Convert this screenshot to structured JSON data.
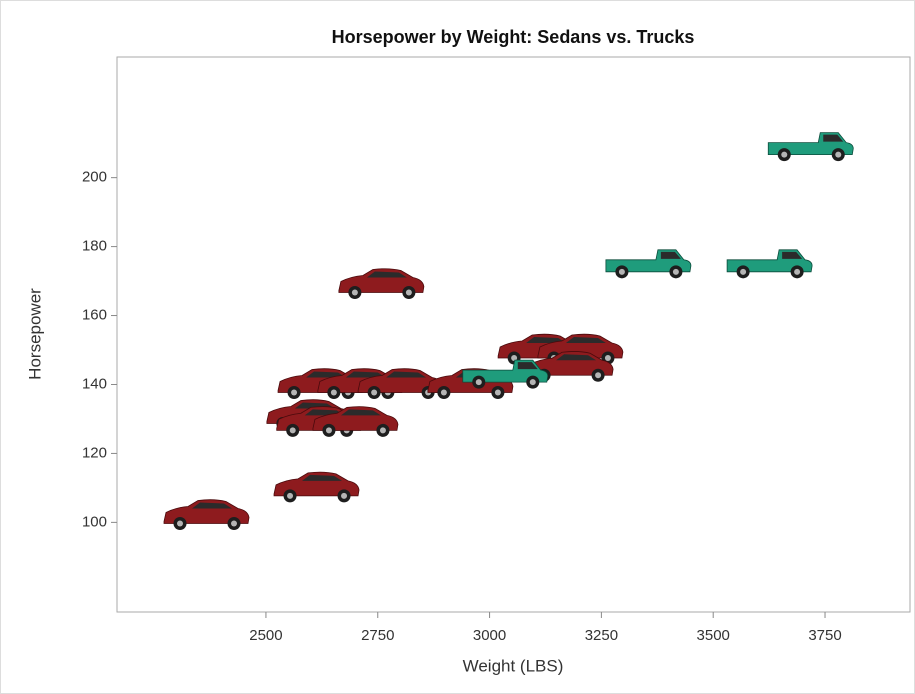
{
  "chart_data": {
    "type": "scatter",
    "title": "Horsepower by Weight: Sedans vs. Trucks",
    "x_label": "Weight (LBS)",
    "y_label": "Horsepower",
    "xlim": [
      2167,
      3940
    ],
    "xticks": [
      2500,
      2750,
      3000,
      3250,
      3500,
      3750
    ],
    "ylim": [
      74,
      235
    ],
    "yticks": [
      100,
      120,
      140,
      160,
      180,
      200
    ],
    "grid": false,
    "series": [
      {
        "marker": "car",
        "color": "#8e1b1e",
        "x": [
          2366,
          2612,
          2757,
          2621,
          2710,
          2800,
          2596,
          2618,
          2699,
          2956,
          3113,
          3202,
          3180
        ],
        "values": [
          102,
          110,
          169,
          140,
          140,
          140,
          131,
          129,
          129,
          140,
          150,
          150,
          145
        ]
      },
      {
        "marker": "truck",
        "color": "#1f9c7c",
        "x": [
          3034,
          3354,
          3625,
          3717
        ],
        "values": [
          143,
          175,
          175,
          209
        ]
      }
    ]
  }
}
